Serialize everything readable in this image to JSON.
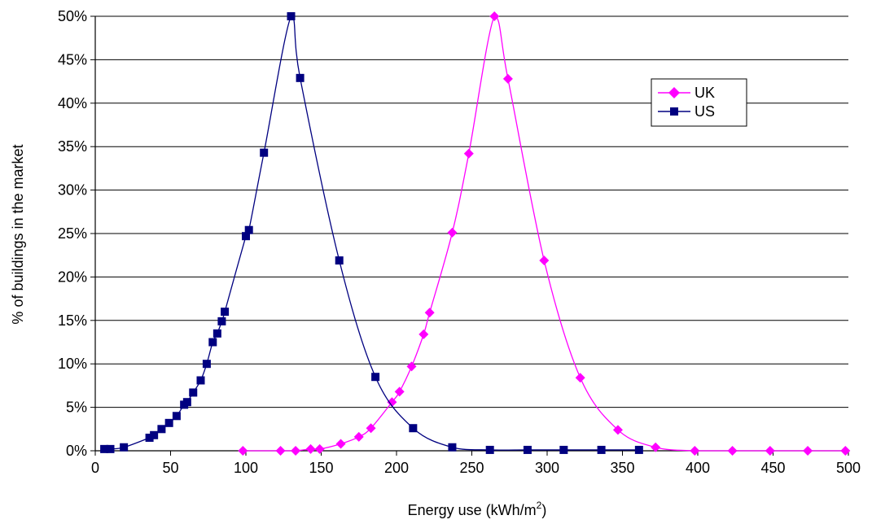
{
  "chart_data": {
    "type": "line",
    "xlabel": "Energy use (kWh/m",
    "xlabel_sup": "2",
    "xlabel_suffix": ")",
    "ylabel": "% of buildings in the market",
    "xlim": [
      0,
      500
    ],
    "ylim": [
      0,
      50
    ],
    "x_ticks": [
      "0",
      "50",
      "100",
      "150",
      "200",
      "250",
      "300",
      "350",
      "400",
      "450",
      "500"
    ],
    "y_ticks": [
      "0%",
      "5%",
      "10%",
      "15%",
      "20%",
      "25%",
      "30%",
      "35%",
      "40%",
      "45%",
      "50%"
    ],
    "grid": "horizontal",
    "legend_position": "top-right",
    "series": [
      {
        "name": "UK",
        "color": "#ff00ff",
        "marker": "diamond",
        "x": [
          98,
          123,
          133,
          143,
          149,
          163,
          175,
          183,
          197,
          202,
          210,
          218,
          222,
          237,
          248,
          265,
          274,
          298,
          322,
          347,
          372,
          398,
          423,
          448,
          473,
          498
        ],
        "y": [
          0,
          0,
          0,
          0.2,
          0.2,
          0.8,
          1.6,
          2.6,
          5.6,
          6.8,
          9.7,
          13.4,
          15.9,
          25.1,
          34.2,
          50,
          42.8,
          21.9,
          8.4,
          2.4,
          0.4,
          0,
          0,
          0,
          0,
          0
        ]
      },
      {
        "name": "US",
        "color": "#000080",
        "marker": "square",
        "x": [
          6,
          10,
          19,
          36,
          39,
          44,
          49,
          54,
          59,
          61,
          65,
          70,
          74,
          78,
          81,
          84,
          86,
          100,
          102,
          112,
          130,
          136,
          162,
          186,
          211,
          237,
          262,
          287,
          311,
          336,
          361
        ],
        "y": [
          0.2,
          0.2,
          0.4,
          1.5,
          1.8,
          2.5,
          3.2,
          4,
          5.3,
          5.6,
          6.7,
          8.1,
          10,
          12.5,
          13.5,
          14.9,
          16,
          24.7,
          25.4,
          34.3,
          50,
          42.9,
          21.9,
          8.5,
          2.6,
          0.4,
          0.1,
          0.1,
          0.1,
          0.1,
          0.1
        ]
      }
    ]
  }
}
